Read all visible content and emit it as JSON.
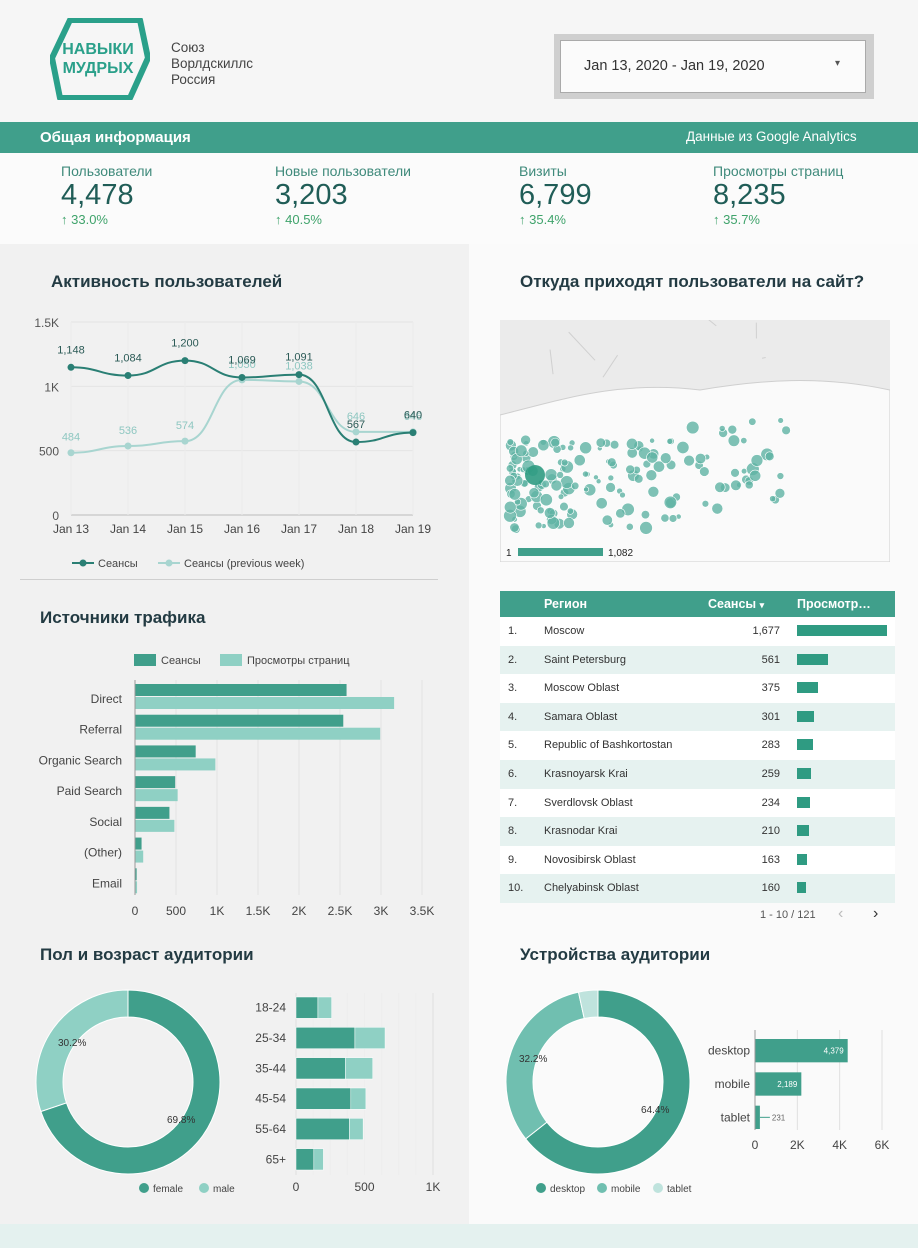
{
  "header": {
    "logo_text": [
      "НАВЫКИ",
      "МУДРЫХ"
    ],
    "org_lines": [
      "Союз",
      "Ворлдскиллс",
      "Россия"
    ],
    "date_range": "Jan 13, 2020 - Jan 19, 2020",
    "caret": "▾"
  },
  "banner": {
    "title": "Общая информация",
    "source": "Данные из Google Analytics"
  },
  "kpis": [
    {
      "label": "Пользователи",
      "value": "4,478",
      "delta": "33.0%"
    },
    {
      "label": "Новые пользователи",
      "value": "3,203",
      "delta": "40.5%"
    },
    {
      "label": "Визиты",
      "value": "6,799",
      "delta": "35.4%"
    },
    {
      "label": "Просмотры страниц",
      "value": "8,235",
      "delta": "35.7%"
    }
  ],
  "delta_icon": "arrow-up-icon",
  "sections": {
    "activity": "Активность пользователей",
    "map": "Откуда приходят пользователи на сайт?",
    "traffic": "Источники трафика",
    "gender_age": "Пол и возраст аудитории",
    "devices": "Устройства аудитории"
  },
  "colors": {
    "primary": "#409f8b",
    "dark": "#2a7f74",
    "light": "#8fd0c4",
    "prev": "#a8d5d0"
  },
  "map_legend": {
    "min": "1",
    "max": "1,082"
  },
  "table": {
    "headers": [
      "Регион",
      "Сеансы",
      "Просмотр…"
    ],
    "sort_icon": "▾",
    "rows": [
      {
        "n": "1.",
        "region": "Moscow",
        "sessions": "1,677",
        "views": 1
      },
      {
        "n": "2.",
        "region": "Saint Petersburg",
        "sessions": "561",
        "views": 0.34
      },
      {
        "n": "3.",
        "region": "Moscow Oblast",
        "sessions": "375",
        "views": 0.23
      },
      {
        "n": "4.",
        "region": "Samara Oblast",
        "sessions": "301",
        "views": 0.19
      },
      {
        "n": "5.",
        "region": "Republic of Bashkortostan",
        "sessions": "283",
        "views": 0.18
      },
      {
        "n": "6.",
        "region": "Krasnoyarsk Krai",
        "sessions": "259",
        "views": 0.15
      },
      {
        "n": "7.",
        "region": "Sverdlovsk Oblast",
        "sessions": "234",
        "views": 0.14
      },
      {
        "n": "8.",
        "region": "Krasnodar Krai",
        "sessions": "210",
        "views": 0.13
      },
      {
        "n": "9.",
        "region": "Novosibirsk Oblast",
        "sessions": "163",
        "views": 0.11
      },
      {
        "n": "10.",
        "region": "Chelyabinsk Oblast",
        "sessions": "160",
        "views": 0.1
      }
    ],
    "pager": "1 - 10 / 121",
    "prev": "‹",
    "next": "›"
  },
  "chart_data": [
    {
      "type": "line",
      "title": "Активность пользователей",
      "categories": [
        "Jan 13",
        "Jan 14",
        "Jan 15",
        "Jan 16",
        "Jan 17",
        "Jan 18",
        "Jan 19"
      ],
      "ylim": [
        0,
        1500
      ],
      "yticks": [
        "0",
        "500",
        "1K",
        "1.5K"
      ],
      "series": [
        {
          "name": "Сеансы",
          "values": [
            1148,
            1084,
            1200,
            1069,
            1091,
            567,
            640
          ]
        },
        {
          "name": "Сеансы (previous week)",
          "values": [
            484,
            536,
            574,
            1050,
            1038,
            646,
            646
          ]
        }
      ]
    },
    {
      "type": "bar",
      "orientation": "horizontal",
      "title": "Источники трафика",
      "categories": [
        "Direct",
        "Referral",
        "Organic Search",
        "Paid Search",
        "Social",
        "(Other)",
        "Email"
      ],
      "xlim": [
        0,
        3500
      ],
      "xticks": [
        "0",
        "500",
        "1K",
        "1.5K",
        "2K",
        "2.5K",
        "3K",
        "3.5K"
      ],
      "series": [
        {
          "name": "Сеансы",
          "values": [
            2580,
            2540,
            740,
            490,
            420,
            80,
            20
          ]
        },
        {
          "name": "Просмотры страниц",
          "values": [
            3160,
            2990,
            980,
            520,
            480,
            100,
            25
          ]
        }
      ]
    },
    {
      "type": "pie",
      "title": "Пол и возраст аудитории",
      "categories": [
        "female",
        "male"
      ],
      "values": [
        69.8,
        30.2
      ],
      "labels": [
        "69.8%",
        "30.2%"
      ]
    },
    {
      "type": "bar",
      "orientation": "horizontal",
      "stacked": true,
      "categories": [
        "18-24",
        "25-34",
        "35-44",
        "45-54",
        "55-64",
        "65+"
      ],
      "xlim": [
        0,
        1000
      ],
      "xticks": [
        "0",
        "500",
        "1K"
      ],
      "series": [
        {
          "name": "female",
          "values": [
            160,
            430,
            360,
            400,
            390,
            130
          ]
        },
        {
          "name": "male",
          "values": [
            100,
            220,
            200,
            110,
            100,
            70
          ]
        }
      ]
    },
    {
      "type": "pie",
      "title": "Устройства аудитории",
      "categories": [
        "desktop",
        "mobile",
        "tablet"
      ],
      "values": [
        64.4,
        32.2,
        3.4
      ],
      "labels": [
        "64.4%",
        "32.2%",
        ""
      ]
    },
    {
      "type": "bar",
      "orientation": "horizontal",
      "categories": [
        "desktop",
        "mobile",
        "tablet"
      ],
      "values": [
        4379,
        2189,
        231
      ],
      "labels": [
        "4,379",
        "2,189",
        "231"
      ],
      "xlim": [
        0,
        6000
      ],
      "xticks": [
        "0",
        "2K",
        "4K",
        "6K"
      ]
    }
  ]
}
